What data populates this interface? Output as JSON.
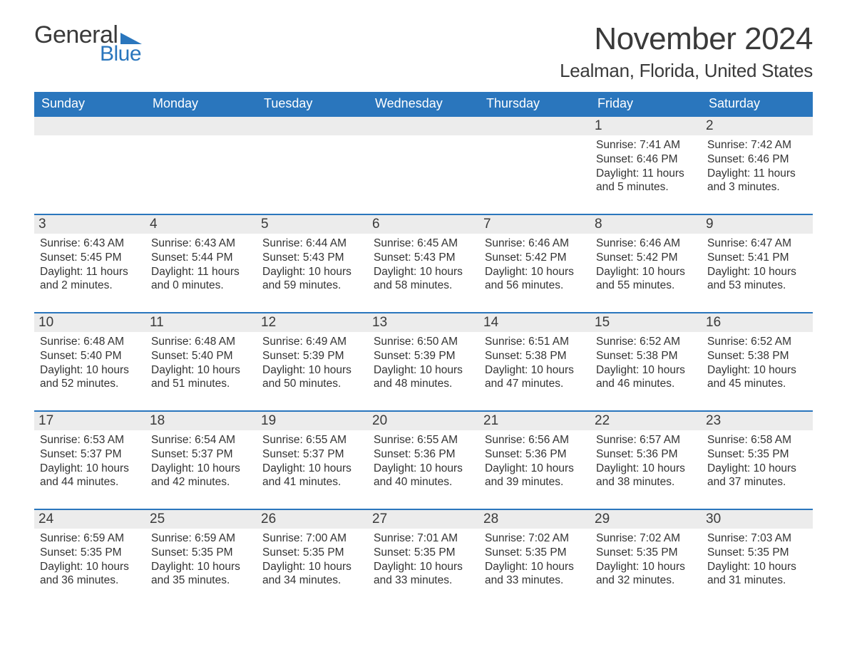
{
  "brand": {
    "word1": "General",
    "word2": "Blue",
    "logo_color": "#2a76bd"
  },
  "title": {
    "month": "November 2024",
    "location": "Lealman, Florida, United States"
  },
  "colors": {
    "header_bg": "#2a76bd",
    "header_text": "#ffffff",
    "daynum_bg": "#ececec",
    "text": "#333333",
    "bg": "#ffffff"
  },
  "typography": {
    "month_fontsize": 44,
    "location_fontsize": 26,
    "dayhead_fontsize": 18,
    "daynum_fontsize": 19,
    "body_fontsize": 15.5
  },
  "layout": {
    "columns": 7,
    "rows": 5
  },
  "day_names": [
    "Sunday",
    "Monday",
    "Tuesday",
    "Wednesday",
    "Thursday",
    "Friday",
    "Saturday"
  ],
  "labels": {
    "sunrise": "Sunrise:",
    "sunset": "Sunset:",
    "daylight": "Daylight:"
  },
  "weeks": [
    [
      {
        "empty": true
      },
      {
        "empty": true
      },
      {
        "empty": true
      },
      {
        "empty": true
      },
      {
        "empty": true
      },
      {
        "n": "1",
        "sunrise": "7:41 AM",
        "sunset": "6:46 PM",
        "daylight": "11 hours and 5 minutes."
      },
      {
        "n": "2",
        "sunrise": "7:42 AM",
        "sunset": "6:46 PM",
        "daylight": "11 hours and 3 minutes."
      }
    ],
    [
      {
        "n": "3",
        "sunrise": "6:43 AM",
        "sunset": "5:45 PM",
        "daylight": "11 hours and 2 minutes."
      },
      {
        "n": "4",
        "sunrise": "6:43 AM",
        "sunset": "5:44 PM",
        "daylight": "11 hours and 0 minutes."
      },
      {
        "n": "5",
        "sunrise": "6:44 AM",
        "sunset": "5:43 PM",
        "daylight": "10 hours and 59 minutes."
      },
      {
        "n": "6",
        "sunrise": "6:45 AM",
        "sunset": "5:43 PM",
        "daylight": "10 hours and 58 minutes."
      },
      {
        "n": "7",
        "sunrise": "6:46 AM",
        "sunset": "5:42 PM",
        "daylight": "10 hours and 56 minutes."
      },
      {
        "n": "8",
        "sunrise": "6:46 AM",
        "sunset": "5:42 PM",
        "daylight": "10 hours and 55 minutes."
      },
      {
        "n": "9",
        "sunrise": "6:47 AM",
        "sunset": "5:41 PM",
        "daylight": "10 hours and 53 minutes."
      }
    ],
    [
      {
        "n": "10",
        "sunrise": "6:48 AM",
        "sunset": "5:40 PM",
        "daylight": "10 hours and 52 minutes."
      },
      {
        "n": "11",
        "sunrise": "6:48 AM",
        "sunset": "5:40 PM",
        "daylight": "10 hours and 51 minutes."
      },
      {
        "n": "12",
        "sunrise": "6:49 AM",
        "sunset": "5:39 PM",
        "daylight": "10 hours and 50 minutes."
      },
      {
        "n": "13",
        "sunrise": "6:50 AM",
        "sunset": "5:39 PM",
        "daylight": "10 hours and 48 minutes."
      },
      {
        "n": "14",
        "sunrise": "6:51 AM",
        "sunset": "5:38 PM",
        "daylight": "10 hours and 47 minutes."
      },
      {
        "n": "15",
        "sunrise": "6:52 AM",
        "sunset": "5:38 PM",
        "daylight": "10 hours and 46 minutes."
      },
      {
        "n": "16",
        "sunrise": "6:52 AM",
        "sunset": "5:38 PM",
        "daylight": "10 hours and 45 minutes."
      }
    ],
    [
      {
        "n": "17",
        "sunrise": "6:53 AM",
        "sunset": "5:37 PM",
        "daylight": "10 hours and 44 minutes."
      },
      {
        "n": "18",
        "sunrise": "6:54 AM",
        "sunset": "5:37 PM",
        "daylight": "10 hours and 42 minutes."
      },
      {
        "n": "19",
        "sunrise": "6:55 AM",
        "sunset": "5:37 PM",
        "daylight": "10 hours and 41 minutes."
      },
      {
        "n": "20",
        "sunrise": "6:55 AM",
        "sunset": "5:36 PM",
        "daylight": "10 hours and 40 minutes."
      },
      {
        "n": "21",
        "sunrise": "6:56 AM",
        "sunset": "5:36 PM",
        "daylight": "10 hours and 39 minutes."
      },
      {
        "n": "22",
        "sunrise": "6:57 AM",
        "sunset": "5:36 PM",
        "daylight": "10 hours and 38 minutes."
      },
      {
        "n": "23",
        "sunrise": "6:58 AM",
        "sunset": "5:35 PM",
        "daylight": "10 hours and 37 minutes."
      }
    ],
    [
      {
        "n": "24",
        "sunrise": "6:59 AM",
        "sunset": "5:35 PM",
        "daylight": "10 hours and 36 minutes."
      },
      {
        "n": "25",
        "sunrise": "6:59 AM",
        "sunset": "5:35 PM",
        "daylight": "10 hours and 35 minutes."
      },
      {
        "n": "26",
        "sunrise": "7:00 AM",
        "sunset": "5:35 PM",
        "daylight": "10 hours and 34 minutes."
      },
      {
        "n": "27",
        "sunrise": "7:01 AM",
        "sunset": "5:35 PM",
        "daylight": "10 hours and 33 minutes."
      },
      {
        "n": "28",
        "sunrise": "7:02 AM",
        "sunset": "5:35 PM",
        "daylight": "10 hours and 33 minutes."
      },
      {
        "n": "29",
        "sunrise": "7:02 AM",
        "sunset": "5:35 PM",
        "daylight": "10 hours and 32 minutes."
      },
      {
        "n": "30",
        "sunrise": "7:03 AM",
        "sunset": "5:35 PM",
        "daylight": "10 hours and 31 minutes."
      }
    ]
  ]
}
